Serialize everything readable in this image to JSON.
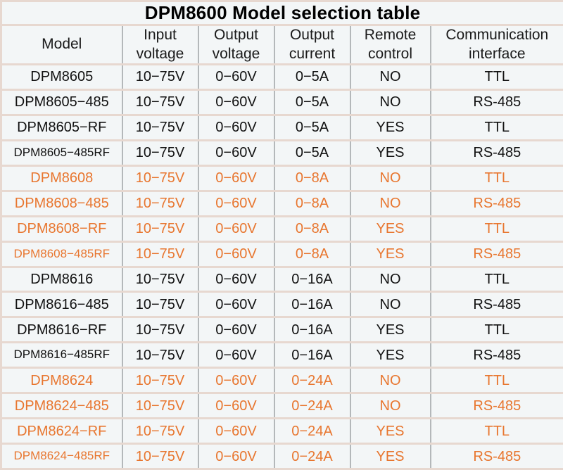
{
  "title": "DPM8600 Model selection table",
  "colors": {
    "orange_text": "#e8762f",
    "black_text": "#111111",
    "cell_bg": "#f3f6f7",
    "horizontal_border": "#e7d8d0",
    "vertical_border": "#b4b8ba"
  },
  "table": {
    "columns": [
      "Model",
      "Input voltage",
      "Output voltage",
      "Output current",
      "Remote control",
      "Communication interface"
    ],
    "rows": [
      {
        "model": "DPM8605",
        "input_voltage": "10−75V",
        "output_voltage": "0−60V",
        "output_current": "0−5A",
        "remote_control": "NO",
        "communication_interface": "TTL",
        "color": "black"
      },
      {
        "model": "DPM8605−485",
        "input_voltage": "10−75V",
        "output_voltage": "0−60V",
        "output_current": "0−5A",
        "remote_control": "NO",
        "communication_interface": "RS-485",
        "color": "black"
      },
      {
        "model": "DPM8605−RF",
        "input_voltage": "10−75V",
        "output_voltage": "0−60V",
        "output_current": "0−5A",
        "remote_control": "YES",
        "communication_interface": "TTL",
        "color": "black"
      },
      {
        "model": "DPM8605−485RF",
        "input_voltage": "10−75V",
        "output_voltage": "0−60V",
        "output_current": "0−5A",
        "remote_control": "YES",
        "communication_interface": "RS-485",
        "color": "black"
      },
      {
        "model": "DPM8608",
        "input_voltage": "10−75V",
        "output_voltage": "0−60V",
        "output_current": "0−8A",
        "remote_control": "NO",
        "communication_interface": "TTL",
        "color": "orange"
      },
      {
        "model": "DPM8608−485",
        "input_voltage": "10−75V",
        "output_voltage": "0−60V",
        "output_current": "0−8A",
        "remote_control": "NO",
        "communication_interface": "RS-485",
        "color": "orange"
      },
      {
        "model": "DPM8608−RF",
        "input_voltage": "10−75V",
        "output_voltage": "0−60V",
        "output_current": "0−8A",
        "remote_control": "YES",
        "communication_interface": "TTL",
        "color": "orange"
      },
      {
        "model": "DPM8608−485RF",
        "input_voltage": "10−75V",
        "output_voltage": "0−60V",
        "output_current": "0−8A",
        "remote_control": "YES",
        "communication_interface": "RS-485",
        "color": "orange"
      },
      {
        "model": "DPM8616",
        "input_voltage": "10−75V",
        "output_voltage": "0−60V",
        "output_current": "0−16A",
        "remote_control": "NO",
        "communication_interface": "TTL",
        "color": "black"
      },
      {
        "model": "DPM8616−485",
        "input_voltage": "10−75V",
        "output_voltage": "0−60V",
        "output_current": "0−16A",
        "remote_control": "NO",
        "communication_interface": "RS-485",
        "color": "black"
      },
      {
        "model": "DPM8616−RF",
        "input_voltage": "10−75V",
        "output_voltage": "0−60V",
        "output_current": "0−16A",
        "remote_control": "YES",
        "communication_interface": "TTL",
        "color": "black"
      },
      {
        "model": "DPM8616−485RF",
        "input_voltage": "10−75V",
        "output_voltage": "0−60V",
        "output_current": "0−16A",
        "remote_control": "YES",
        "communication_interface": "RS-485",
        "color": "black"
      },
      {
        "model": "DPM8624",
        "input_voltage": "10−75V",
        "output_voltage": "0−60V",
        "output_current": "0−24A",
        "remote_control": "NO",
        "communication_interface": "TTL",
        "color": "orange"
      },
      {
        "model": "DPM8624−485",
        "input_voltage": "10−75V",
        "output_voltage": "0−60V",
        "output_current": "0−24A",
        "remote_control": "NO",
        "communication_interface": "RS-485",
        "color": "orange"
      },
      {
        "model": "DPM8624−RF",
        "input_voltage": "10−75V",
        "output_voltage": "0−60V",
        "output_current": "0−24A",
        "remote_control": "YES",
        "communication_interface": "TTL",
        "color": "orange"
      },
      {
        "model": "DPM8624−485RF",
        "input_voltage": "10−75V",
        "output_voltage": "0−60V",
        "output_current": "0−24A",
        "remote_control": "YES",
        "communication_interface": "RS-485",
        "color": "orange"
      }
    ]
  }
}
